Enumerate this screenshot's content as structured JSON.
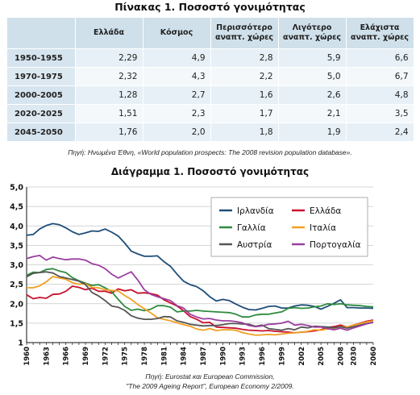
{
  "table": {
    "title": "Πίνακας 1. Ποσοστό γονιμότητας",
    "headers": [
      "Ελλάδα",
      "Κόσμος",
      "Περισσότερο αναπτ. χώρες",
      "Λιγότερο αναπτ. χώρες",
      "Ελάχιστα αναπτ. χώρες"
    ],
    "rows": [
      {
        "period": "1950-1955",
        "values": [
          "2,29",
          "4,9",
          "2,8",
          "5,9",
          "6,6"
        ]
      },
      {
        "period": "1970-1975",
        "values": [
          "2,32",
          "4,3",
          "2,2",
          "5,0",
          "6,7"
        ]
      },
      {
        "period": "2000-2005",
        "values": [
          "1,28",
          "2,7",
          "1,6",
          "2,6",
          "4,8"
        ]
      },
      {
        "period": "2020-2025",
        "values": [
          "1,51",
          "2,3",
          "1,7",
          "2,1",
          "3,5"
        ]
      },
      {
        "period": "2045-2050",
        "values": [
          "1,76",
          "2,0",
          "1,8",
          "1,9",
          "2,4"
        ]
      }
    ],
    "source": "Πηγή: Ηνωμένα Έθνη, «World population prospects: The 2008 revision population database»."
  },
  "chart_data": {
    "type": "line",
    "title": "Διάγραμμα 1. Ποσοστό γονιμότητας",
    "x": [
      "1960",
      "1961",
      "1962",
      "1963",
      "1964",
      "1965",
      "1966",
      "1967",
      "1968",
      "1969",
      "1970",
      "1971",
      "1972",
      "1973",
      "1974",
      "1975",
      "1976",
      "1977",
      "1978",
      "1979",
      "1980",
      "1981",
      "1982",
      "1983",
      "1984",
      "1985",
      "1986",
      "1987",
      "1988",
      "1989",
      "1990",
      "1991",
      "1992",
      "1993",
      "1994",
      "1995",
      "1996",
      "1997",
      "1998",
      "1999",
      "2000",
      "2001",
      "2002",
      "2003",
      "2004",
      "2005",
      "2006",
      "2007",
      "2008",
      "2020",
      "2030",
      "2040",
      "2050",
      "2060"
    ],
    "x_tick_labels": [
      "1960",
      "1963",
      "1966",
      "1969",
      "1972",
      "1975",
      "1978",
      "1981",
      "1984",
      "1987",
      "1990",
      "1993",
      "1996",
      "1999",
      "2002",
      "2005",
      "2008",
      "2030",
      "2060"
    ],
    "ylim": [
      1,
      5
    ],
    "y_ticks": [
      "1",
      "1,5",
      "2,0",
      "2,5",
      "3,0",
      "3,5",
      "4,0",
      "4,5",
      "5,0"
    ],
    "grid": true,
    "legend_position": "top-right",
    "series": [
      {
        "name": "Ιρλανδία",
        "color": "#1f4e79",
        "values": [
          3.76,
          3.78,
          3.92,
          4.01,
          4.06,
          4.03,
          3.95,
          3.85,
          3.78,
          3.82,
          3.87,
          3.86,
          3.92,
          3.84,
          3.74,
          3.56,
          3.35,
          3.28,
          3.22,
          3.22,
          3.23,
          3.08,
          2.96,
          2.76,
          2.58,
          2.49,
          2.44,
          2.33,
          2.18,
          2.07,
          2.11,
          2.08,
          1.99,
          1.91,
          1.85,
          1.84,
          1.88,
          1.93,
          1.94,
          1.89,
          1.89,
          1.94,
          1.97,
          1.96,
          1.93,
          1.86,
          1.93,
          2.01,
          2.1,
          1.9,
          1.9,
          1.89,
          1.89,
          1.88
        ]
      },
      {
        "name": "Ελλάδα",
        "color": "#c8102e",
        "values": [
          2.23,
          2.13,
          2.16,
          2.14,
          2.24,
          2.25,
          2.32,
          2.45,
          2.42,
          2.36,
          2.4,
          2.32,
          2.32,
          2.27,
          2.38,
          2.33,
          2.36,
          2.27,
          2.28,
          2.26,
          2.22,
          2.1,
          2.02,
          1.94,
          1.82,
          1.67,
          1.6,
          1.51,
          1.52,
          1.4,
          1.39,
          1.38,
          1.37,
          1.34,
          1.32,
          1.31,
          1.3,
          1.31,
          1.29,
          1.28,
          1.27,
          1.25,
          1.27,
          1.28,
          1.3,
          1.33,
          1.39,
          1.41,
          1.45,
          1.4,
          1.45,
          1.5,
          1.55,
          1.58
        ]
      },
      {
        "name": "Γαλλία",
        "color": "#2e8b3e",
        "values": [
          2.73,
          2.81,
          2.8,
          2.88,
          2.9,
          2.84,
          2.8,
          2.67,
          2.59,
          2.53,
          2.47,
          2.49,
          2.41,
          2.31,
          2.11,
          1.93,
          1.83,
          1.86,
          1.82,
          1.86,
          1.95,
          1.95,
          1.91,
          1.79,
          1.81,
          1.81,
          1.83,
          1.81,
          1.8,
          1.79,
          1.78,
          1.77,
          1.73,
          1.66,
          1.66,
          1.71,
          1.73,
          1.73,
          1.76,
          1.79,
          1.88,
          1.9,
          1.88,
          1.89,
          1.92,
          1.94,
          2.0,
          1.98,
          2.0,
          1.97,
          1.96,
          1.95,
          1.93,
          1.92
        ]
      },
      {
        "name": "Ιταλία",
        "color": "#f0a020",
        "values": [
          2.41,
          2.41,
          2.46,
          2.56,
          2.7,
          2.66,
          2.63,
          2.54,
          2.5,
          2.51,
          2.42,
          2.41,
          2.36,
          2.34,
          2.33,
          2.21,
          2.11,
          1.98,
          1.87,
          1.76,
          1.64,
          1.6,
          1.56,
          1.51,
          1.46,
          1.42,
          1.35,
          1.32,
          1.36,
          1.31,
          1.33,
          1.33,
          1.32,
          1.26,
          1.22,
          1.19,
          1.2,
          1.21,
          1.2,
          1.22,
          1.24,
          1.25,
          1.27,
          1.29,
          1.33,
          1.32,
          1.35,
          1.37,
          1.41,
          1.4,
          1.45,
          1.49,
          1.53,
          1.56
        ]
      },
      {
        "name": "Αυστρία",
        "color": "#555555",
        "values": [
          2.69,
          2.78,
          2.8,
          2.82,
          2.79,
          2.7,
          2.66,
          2.62,
          2.58,
          2.49,
          2.29,
          2.2,
          2.08,
          1.94,
          1.91,
          1.83,
          1.69,
          1.63,
          1.6,
          1.6,
          1.62,
          1.67,
          1.66,
          1.56,
          1.52,
          1.47,
          1.45,
          1.43,
          1.44,
          1.44,
          1.46,
          1.49,
          1.49,
          1.48,
          1.47,
          1.42,
          1.45,
          1.36,
          1.34,
          1.32,
          1.36,
          1.33,
          1.4,
          1.38,
          1.42,
          1.41,
          1.4,
          1.38,
          1.41,
          1.37,
          1.41,
          1.45,
          1.49,
          1.52
        ]
      },
      {
        "name": "Πορτογαλία",
        "color": "#9b3fa0",
        "values": [
          3.16,
          3.21,
          3.24,
          3.12,
          3.2,
          3.16,
          3.13,
          3.15,
          3.15,
          3.12,
          3.03,
          2.99,
          2.9,
          2.76,
          2.66,
          2.74,
          2.82,
          2.61,
          2.36,
          2.24,
          2.18,
          2.13,
          2.08,
          1.95,
          1.89,
          1.73,
          1.66,
          1.61,
          1.62,
          1.58,
          1.56,
          1.56,
          1.54,
          1.51,
          1.44,
          1.41,
          1.43,
          1.47,
          1.48,
          1.5,
          1.55,
          1.45,
          1.47,
          1.44,
          1.4,
          1.4,
          1.36,
          1.33,
          1.37,
          1.32,
          1.38,
          1.43,
          1.48,
          1.52
        ]
      }
    ],
    "source_lines": [
      "Πηγή: Eurostat και European Commission,",
      "\"The 2009 Ageing Report\", European Economy 2/2009."
    ]
  }
}
